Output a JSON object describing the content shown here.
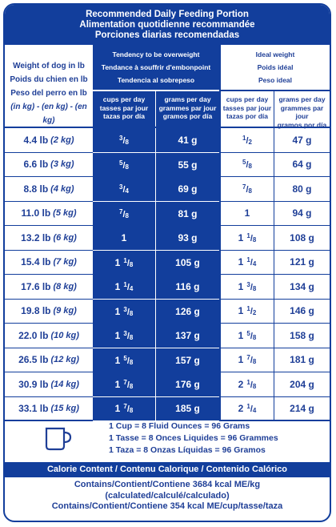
{
  "title": {
    "line1": "Recommended Daily Feeding Portion",
    "line2": "Alimentation quotidienne recommandée",
    "line3": "Porciones diarias recomendadas"
  },
  "header": {
    "weight_col": {
      "en": "Weight of dog in lb",
      "fr": "Poids du chien en lb",
      "es": "Peso del perro en lb",
      "kg": "(in kg) - (en kg) - (en kg)"
    },
    "overweight": {
      "en": "Tendency to be overweight",
      "fr": "Tendance à souffrir d'embonpoint",
      "es": "Tendencia al sobrepeso"
    },
    "ideal": {
      "en": "Ideal weight",
      "fr": "Poids idéal",
      "es": "Peso ideal"
    },
    "cups_label": {
      "en": "cups per day",
      "fr": "tasses par jour",
      "es": "tazas por día"
    },
    "grams_label": {
      "en": "grams per day",
      "fr": "grammes par jour",
      "es": "gramos por día"
    }
  },
  "rows": [
    {
      "lb": "4.4 lb",
      "kg": "(2 kg)",
      "over_cups": {
        "whole": "",
        "num": "3",
        "den": "8"
      },
      "over_grams": "41 g",
      "ideal_cups": {
        "whole": "",
        "num": "1",
        "den": "2"
      },
      "ideal_grams": "47 g"
    },
    {
      "lb": "6.6 lb",
      "kg": "(3 kg)",
      "over_cups": {
        "whole": "",
        "num": "5",
        "den": "8"
      },
      "over_grams": "55 g",
      "ideal_cups": {
        "whole": "",
        "num": "5",
        "den": "8"
      },
      "ideal_grams": "64 g"
    },
    {
      "lb": "8.8 lb",
      "kg": "(4 kg)",
      "over_cups": {
        "whole": "",
        "num": "3",
        "den": "4"
      },
      "over_grams": "69 g",
      "ideal_cups": {
        "whole": "",
        "num": "7",
        "den": "8"
      },
      "ideal_grams": "80 g"
    },
    {
      "lb": "11.0 lb",
      "kg": "(5 kg)",
      "over_cups": {
        "whole": "",
        "num": "7",
        "den": "8"
      },
      "over_grams": "81 g",
      "ideal_cups": {
        "whole": "1",
        "num": "",
        "den": ""
      },
      "ideal_grams": "94 g"
    },
    {
      "lb": "13.2 lb",
      "kg": "(6 kg)",
      "over_cups": {
        "whole": "1",
        "num": "",
        "den": ""
      },
      "over_grams": "93 g",
      "ideal_cups": {
        "whole": "1",
        "num": "1",
        "den": "8"
      },
      "ideal_grams": "108 g"
    },
    {
      "lb": "15.4 lb",
      "kg": "(7 kg)",
      "over_cups": {
        "whole": "1",
        "num": "1",
        "den": "8"
      },
      "over_grams": "105 g",
      "ideal_cups": {
        "whole": "1",
        "num": "1",
        "den": "4"
      },
      "ideal_grams": "121 g"
    },
    {
      "lb": "17.6 lb",
      "kg": "(8 kg)",
      "over_cups": {
        "whole": "1",
        "num": "1",
        "den": "4"
      },
      "over_grams": "116 g",
      "ideal_cups": {
        "whole": "1",
        "num": "3",
        "den": "8"
      },
      "ideal_grams": "134 g"
    },
    {
      "lb": "19.8 lb",
      "kg": "(9 kg)",
      "over_cups": {
        "whole": "1",
        "num": "3",
        "den": "8"
      },
      "over_grams": "126 g",
      "ideal_cups": {
        "whole": "1",
        "num": "1",
        "den": "2"
      },
      "ideal_grams": "146 g"
    },
    {
      "lb": "22.0 lb",
      "kg": "(10 kg)",
      "over_cups": {
        "whole": "1",
        "num": "3",
        "den": "8"
      },
      "over_grams": "137 g",
      "ideal_cups": {
        "whole": "1",
        "num": "5",
        "den": "8"
      },
      "ideal_grams": "158 g"
    },
    {
      "lb": "26.5 lb",
      "kg": "(12 kg)",
      "over_cups": {
        "whole": "1",
        "num": "5",
        "den": "8"
      },
      "over_grams": "157 g",
      "ideal_cups": {
        "whole": "1",
        "num": "7",
        "den": "8"
      },
      "ideal_grams": "181 g"
    },
    {
      "lb": "30.9 lb",
      "kg": "(14 kg)",
      "over_cups": {
        "whole": "1",
        "num": "7",
        "den": "8"
      },
      "over_grams": "176 g",
      "ideal_cups": {
        "whole": "2",
        "num": "1",
        "den": "8"
      },
      "ideal_grams": "204 g"
    },
    {
      "lb": "33.1 lb",
      "kg": "(15 kg)",
      "over_cups": {
        "whole": "1",
        "num": "7",
        "den": "8"
      },
      "over_grams": "185 g",
      "ideal_cups": {
        "whole": "2",
        "num": "1",
        "den": "4"
      },
      "ideal_grams": "214 g"
    }
  ],
  "conversion": {
    "icon": "cup-icon",
    "en": "1 Cup = 8 Fluid Ounces = 96 Grams",
    "fr": "1 Tasse = 8 Onces Liquides = 96 Grammes",
    "es": "1 Taza = 8 Onzas Líquidas = 96 Gramos"
  },
  "calorie": {
    "header": "Calorie Content / Contenu Calorique / Contenido Calórico",
    "line1": "Contains/Contient/Contiene 3684 kcal ME/kg",
    "line2": "(calculated/calculé/calculado)",
    "line3": "Contains/Contient/Contiene 354 kcal ME/cup/tasse/taza"
  },
  "colors": {
    "brand_blue": "#123e9c",
    "text_blue": "#1f3f97"
  }
}
